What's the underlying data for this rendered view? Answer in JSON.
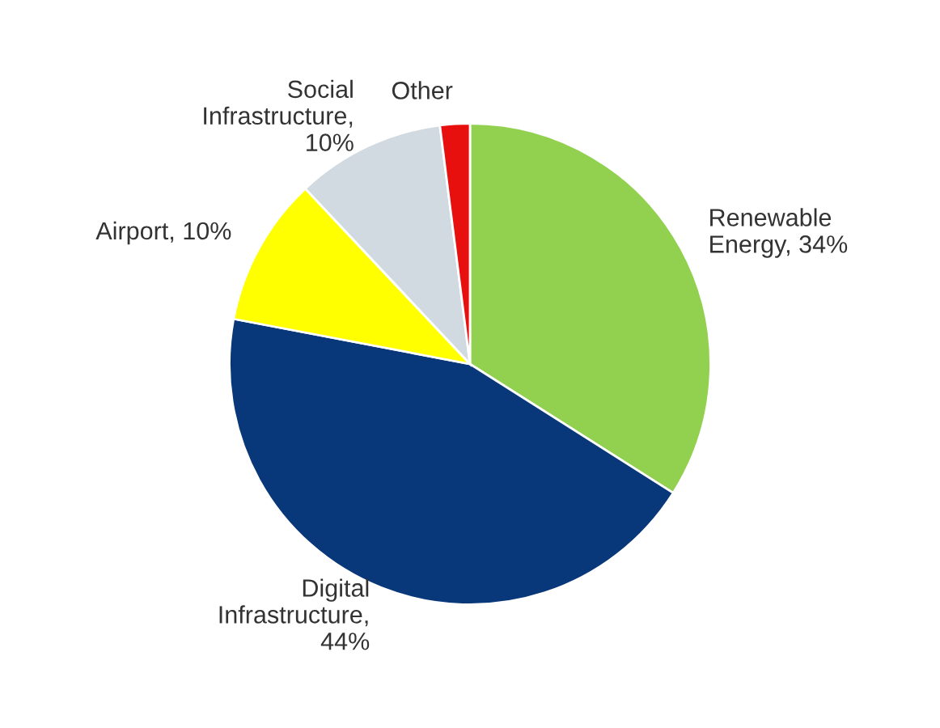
{
  "chart_data": {
    "type": "pie",
    "categories": [
      "Renewable\nEnergy, 34%",
      "Digital\nInfrastructure,\n44%",
      "Airport, 10%",
      "Social\nInfrastructure,\n10%",
      "Other"
    ],
    "values": [
      34,
      44,
      10,
      10,
      2
    ],
    "colors": [
      "#92d050",
      "#08377a",
      "#ffff00",
      "#d0dae0",
      "#e8100f"
    ]
  }
}
